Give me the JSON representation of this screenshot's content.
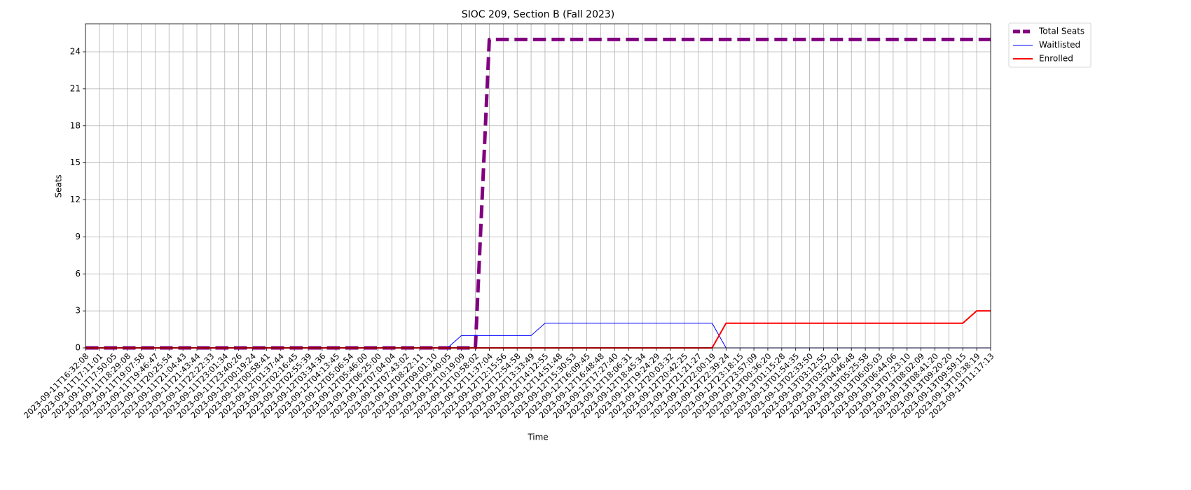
{
  "chart_data": {
    "type": "line",
    "title": "SIOC 209, Section B (Fall 2023)",
    "x_label": "Time",
    "y_label": "Seats",
    "categories": [
      "2023-09-11T16:32:08",
      "2023-09-11T17:11:01",
      "2023-09-11T17:50:05",
      "2023-09-11T18:29:08",
      "2023-09-11T19:07:58",
      "2023-09-11T19:46:47",
      "2023-09-11T20:25:54",
      "2023-09-11T21:04:43",
      "2023-09-11T21:43:44",
      "2023-09-11T22:22:33",
      "2023-09-11T23:01:34",
      "2023-09-11T23:40:26",
      "2023-09-12T00:19:24",
      "2023-09-12T00:58:41",
      "2023-09-12T01:37:44",
      "2023-09-12T02:16:45",
      "2023-09-12T02:55:39",
      "2023-09-12T03:34:36",
      "2023-09-12T04:13:45",
      "2023-09-12T05:06:54",
      "2023-09-12T05:46:00",
      "2023-09-12T06:25:00",
      "2023-09-12T07:04:04",
      "2023-09-12T07:43:02",
      "2023-09-12T08:22:11",
      "2023-09-12T09:01:10",
      "2023-09-12T09:40:05",
      "2023-09-12T10:19:09",
      "2023-09-12T10:58:02",
      "2023-09-12T11:37:04",
      "2023-09-12T12:15:56",
      "2023-09-12T12:54:58",
      "2023-09-12T13:33:49",
      "2023-09-12T14:12:55",
      "2023-09-12T14:51:48",
      "2023-09-12T15:30:53",
      "2023-09-12T16:09:45",
      "2023-09-12T16:48:48",
      "2023-09-12T17:27:40",
      "2023-09-12T18:06:31",
      "2023-09-12T18:45:34",
      "2023-09-12T19:24:29",
      "2023-09-12T20:03:32",
      "2023-09-12T20:42:25",
      "2023-09-12T21:21:27",
      "2023-09-12T22:00:19",
      "2023-09-12T22:39:24",
      "2023-09-12T23:18:15",
      "2023-09-12T23:57:09",
      "2023-09-13T00:36:20",
      "2023-09-13T01:15:28",
      "2023-09-13T01:54:35",
      "2023-09-13T02:33:50",
      "2023-09-13T03:12:55",
      "2023-09-13T03:52:02",
      "2023-09-13T04:46:48",
      "2023-09-13T05:25:58",
      "2023-09-13T06:05:03",
      "2023-09-13T06:44:06",
      "2023-09-13T07:23:10",
      "2023-09-13T08:02:09",
      "2023-09-13T08:41:20",
      "2023-09-13T09:20:20",
      "2023-09-13T09:59:15",
      "2023-09-13T10:38:19",
      "2023-09-13T11:17:13"
    ],
    "series": [
      {
        "name": "Total Seats",
        "color": "#800080",
        "dashed": true,
        "width": 5,
        "values": [
          0,
          0,
          0,
          0,
          0,
          0,
          0,
          0,
          0,
          0,
          0,
          0,
          0,
          0,
          0,
          0,
          0,
          0,
          0,
          0,
          0,
          0,
          0,
          0,
          0,
          0,
          0,
          0,
          0,
          25,
          25,
          25,
          25,
          25,
          25,
          25,
          25,
          25,
          25,
          25,
          25,
          25,
          25,
          25,
          25,
          25,
          25,
          25,
          25,
          25,
          25,
          25,
          25,
          25,
          25,
          25,
          25,
          25,
          25,
          25,
          25,
          25,
          25,
          25,
          25,
          25
        ]
      },
      {
        "name": "Waitlisted",
        "color": "#0000ff",
        "dashed": false,
        "width": 1,
        "values": [
          0,
          0,
          0,
          0,
          0,
          0,
          0,
          0,
          0,
          0,
          0,
          0,
          0,
          0,
          0,
          0,
          0,
          0,
          0,
          0,
          0,
          0,
          0,
          0,
          0,
          0,
          0,
          1,
          1,
          1,
          1,
          1,
          1,
          2,
          2,
          2,
          2,
          2,
          2,
          2,
          2,
          2,
          2,
          2,
          2,
          2,
          0,
          0,
          0,
          0,
          0,
          0,
          0,
          0,
          0,
          0,
          0,
          0,
          0,
          0,
          0,
          0,
          0,
          0,
          0,
          0
        ]
      },
      {
        "name": "Enrolled",
        "color": "#ff0000",
        "dashed": false,
        "width": 2,
        "values": [
          0,
          0,
          0,
          0,
          0,
          0,
          0,
          0,
          0,
          0,
          0,
          0,
          0,
          0,
          0,
          0,
          0,
          0,
          0,
          0,
          0,
          0,
          0,
          0,
          0,
          0,
          0,
          0,
          0,
          0,
          0,
          0,
          0,
          0,
          0,
          0,
          0,
          0,
          0,
          0,
          0,
          0,
          0,
          0,
          0,
          0,
          2,
          2,
          2,
          2,
          2,
          2,
          2,
          2,
          2,
          2,
          2,
          2,
          2,
          2,
          2,
          2,
          2,
          2,
          3,
          3
        ]
      }
    ],
    "ylim": [
      0,
      26.27
    ],
    "yticks": [
      0,
      3,
      6,
      9,
      12,
      15,
      18,
      21,
      24
    ],
    "grid": true,
    "legend": "outside-right"
  }
}
